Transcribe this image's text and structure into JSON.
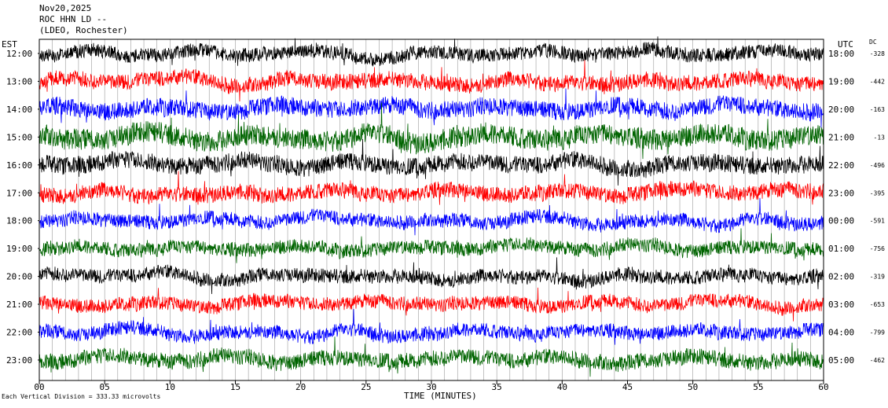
{
  "header": {
    "date": "Nov20,2025",
    "station": "ROC HHN LD --",
    "network": "(LDEO, Rochester)"
  },
  "footnote": "Each Vertical Division = 333.33 microvolts",
  "chart_data": {
    "type": "line",
    "title": "",
    "xlabel": "TIME (MINUTES)",
    "x_ticks": [
      "00",
      "05",
      "10",
      "15",
      "20",
      "25",
      "30",
      "35",
      "40",
      "45",
      "50",
      "55",
      "60"
    ],
    "xlim": [
      0,
      60
    ],
    "left_axis_title": "EST",
    "right_axis_title": "UTC",
    "dc_title": "DC",
    "rows": [
      {
        "est": "12:00",
        "utc": "18:00",
        "dc": "-328",
        "color": "#000000",
        "amp": 8
      },
      {
        "est": "13:00",
        "utc": "19:00",
        "dc": "-442",
        "color": "#ff0000",
        "amp": 9
      },
      {
        "est": "14:00",
        "utc": "20:00",
        "dc": "-163",
        "color": "#0000ff",
        "amp": 10
      },
      {
        "est": "15:00",
        "utc": "21:00",
        "dc": "-13",
        "color": "#006400",
        "amp": 12
      },
      {
        "est": "16:00",
        "utc": "22:00",
        "dc": "-496",
        "color": "#000000",
        "amp": 10
      },
      {
        "est": "17:00",
        "utc": "23:00",
        "dc": "-395",
        "color": "#ff0000",
        "amp": 9
      },
      {
        "est": "18:00",
        "utc": "00:00",
        "dc": "-591",
        "color": "#0000ff",
        "amp": 8
      },
      {
        "est": "19:00",
        "utc": "01:00",
        "dc": "-756",
        "color": "#006400",
        "amp": 8
      },
      {
        "est": "20:00",
        "utc": "02:00",
        "dc": "-319",
        "color": "#000000",
        "amp": 8
      },
      {
        "est": "21:00",
        "utc": "03:00",
        "dc": "-653",
        "color": "#ff0000",
        "amp": 8
      },
      {
        "est": "22:00",
        "utc": "04:00",
        "dc": "-799",
        "color": "#0000ff",
        "amp": 8
      },
      {
        "est": "23:00",
        "utc": "05:00",
        "dc": "-462",
        "color": "#006400",
        "amp": 9
      }
    ],
    "grid": true,
    "legend": "none"
  }
}
